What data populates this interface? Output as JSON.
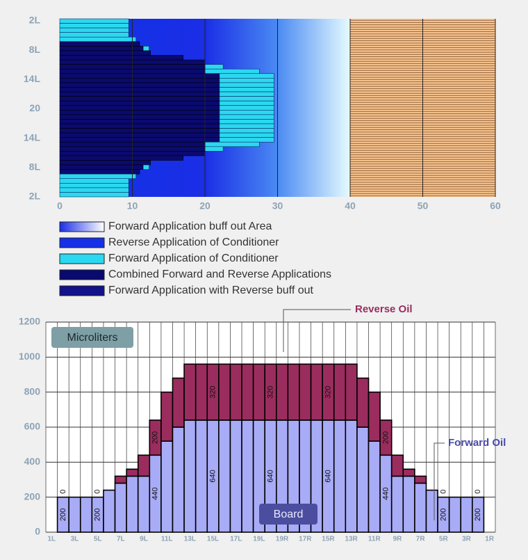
{
  "chart_data": [
    {
      "type": "lane_pattern",
      "xlim": [
        0,
        60
      ],
      "xticks": [
        0,
        10,
        20,
        30,
        40,
        50,
        60
      ],
      "ylabels": [
        "2L",
        "8L",
        "14L",
        "20",
        "14L",
        "8L",
        "2L"
      ],
      "buff_out_end": 40,
      "legend": [
        {
          "name": "Forward Application buff out Area",
          "colors": [
            "#1a2ee6",
            "#ffffff"
          ]
        },
        {
          "name": "Reverse Application of Conditioner",
          "colors": [
            "#1530e6"
          ]
        },
        {
          "name": "Forward Application of Conditioner",
          "colors": [
            "#2bd8f0"
          ]
        },
        {
          "name": "Combined Forward and Reverse Applications",
          "colors": [
            "#0a0a6e"
          ]
        },
        {
          "name": "Forward Application with Reverse buff out",
          "colors": [
            "#12128a"
          ]
        }
      ],
      "rows": [
        {
          "combined": 0,
          "forward": [
            0,
            9.5
          ]
        },
        {
          "combined": 0,
          "forward": [
            0,
            9.5
          ]
        },
        {
          "combined": 0,
          "forward": [
            0,
            9.5
          ]
        },
        {
          "combined": 0,
          "forward": [
            0,
            9.5
          ]
        },
        {
          "combined": 0,
          "forward": [
            0,
            10.5
          ]
        },
        {
          "combined": 11,
          "forward": null
        },
        {
          "combined": 11.5,
          "forward": [
            11.5,
            12.3
          ]
        },
        {
          "combined": 12.5,
          "forward": null
        },
        {
          "combined": 17,
          "forward": null
        },
        {
          "combined": 20,
          "forward": null
        },
        {
          "combined": 20,
          "forward": [
            20,
            22.5
          ]
        },
        {
          "combined": 20,
          "forward": [
            20,
            27.5
          ]
        },
        {
          "combined": 22,
          "forward": [
            22,
            29.5
          ]
        },
        {
          "combined": 22,
          "forward": [
            22,
            29.5
          ]
        },
        {
          "combined": 22,
          "forward": [
            22,
            29.5
          ]
        },
        {
          "combined": 22,
          "forward": [
            22,
            29.5
          ]
        },
        {
          "combined": 22,
          "forward": [
            22,
            29.5
          ]
        },
        {
          "combined": 22,
          "forward": [
            22,
            29.5
          ]
        },
        {
          "combined": 22,
          "forward": [
            22,
            29.5
          ]
        },
        {
          "combined": 22,
          "forward": [
            22,
            29.5
          ]
        },
        {
          "combined": 22,
          "forward": [
            22,
            29.5
          ]
        },
        {
          "combined": 22,
          "forward": [
            22,
            29.5
          ]
        },
        {
          "combined": 22,
          "forward": [
            22,
            29.5
          ]
        },
        {
          "combined": 22,
          "forward": [
            22,
            29.5
          ]
        },
        {
          "combined": 22,
          "forward": [
            22,
            29.5
          ]
        },
        {
          "combined": 22,
          "forward": [
            22,
            29.5
          ]
        },
        {
          "combined": 22,
          "forward": [
            22,
            29.5
          ]
        },
        {
          "combined": 20,
          "forward": [
            20,
            27.5
          ]
        },
        {
          "combined": 20,
          "forward": [
            20,
            22.5
          ]
        },
        {
          "combined": 20,
          "forward": null
        },
        {
          "combined": 17,
          "forward": null
        },
        {
          "combined": 12.5,
          "forward": null
        },
        {
          "combined": 11.5,
          "forward": [
            11.5,
            12.3
          ]
        },
        {
          "combined": 11,
          "forward": null
        },
        {
          "combined": 0,
          "forward": [
            0,
            10.5
          ]
        },
        {
          "combined": 0,
          "forward": [
            0,
            9.5
          ]
        },
        {
          "combined": 0,
          "forward": [
            0,
            9.5
          ]
        },
        {
          "combined": 0,
          "forward": [
            0,
            9.5
          ]
        },
        {
          "combined": 0,
          "forward": [
            0,
            9.5
          ]
        }
      ]
    },
    {
      "type": "stacked_bar",
      "categories": [
        "1L",
        null,
        "3L",
        null,
        "5L",
        null,
        "7L",
        null,
        "9L",
        null,
        "11L",
        null,
        "13L",
        null,
        "15L",
        null,
        "17L",
        null,
        "19L",
        null,
        "19R",
        null,
        "17R",
        null,
        "15R",
        null,
        "13R",
        null,
        "11R",
        null,
        "9R",
        null,
        "7R",
        null,
        "5R",
        null,
        "3R",
        null,
        "1R"
      ],
      "ylim": [
        0,
        1200
      ],
      "yticks": [
        0,
        200,
        400,
        600,
        800,
        1000,
        1200
      ],
      "series": [
        {
          "name": "Forward Oil",
          "color": "#a8abf5",
          "values": [
            0,
            200,
            200,
            200,
            200,
            240,
            280,
            320,
            320,
            440,
            520,
            600,
            640,
            640,
            640,
            640,
            640,
            640,
            640,
            640,
            640,
            640,
            640,
            640,
            640,
            640,
            640,
            600,
            520,
            440,
            320,
            320,
            280,
            240,
            200,
            200,
            200,
            200,
            0
          ],
          "value_labels": [
            null,
            "200",
            null,
            null,
            "200",
            null,
            null,
            null,
            null,
            "440",
            null,
            null,
            null,
            null,
            "640",
            null,
            null,
            null,
            null,
            "640",
            null,
            null,
            null,
            null,
            "640",
            null,
            null,
            null,
            null,
            "440",
            null,
            null,
            null,
            null,
            "200",
            null,
            null,
            "200",
            null
          ]
        },
        {
          "name": "Reverse Oil",
          "color": "#9b2d5e",
          "values": [
            0,
            0,
            0,
            0,
            0,
            0,
            40,
            40,
            120,
            200,
            280,
            280,
            320,
            320,
            320,
            320,
            320,
            320,
            320,
            320,
            320,
            320,
            320,
            320,
            320,
            320,
            320,
            280,
            280,
            200,
            120,
            40,
            40,
            0,
            0,
            0,
            0,
            0,
            0
          ],
          "value_labels": [
            null,
            "0",
            null,
            null,
            "0",
            null,
            null,
            null,
            null,
            "200",
            null,
            null,
            null,
            null,
            "320",
            null,
            null,
            null,
            null,
            "320",
            null,
            null,
            null,
            null,
            "320",
            null,
            null,
            null,
            null,
            "200",
            null,
            null,
            null,
            null,
            "0",
            null,
            null,
            "0",
            null
          ]
        }
      ],
      "ylabel": "Microliters",
      "xlabel": "Board"
    }
  ]
}
